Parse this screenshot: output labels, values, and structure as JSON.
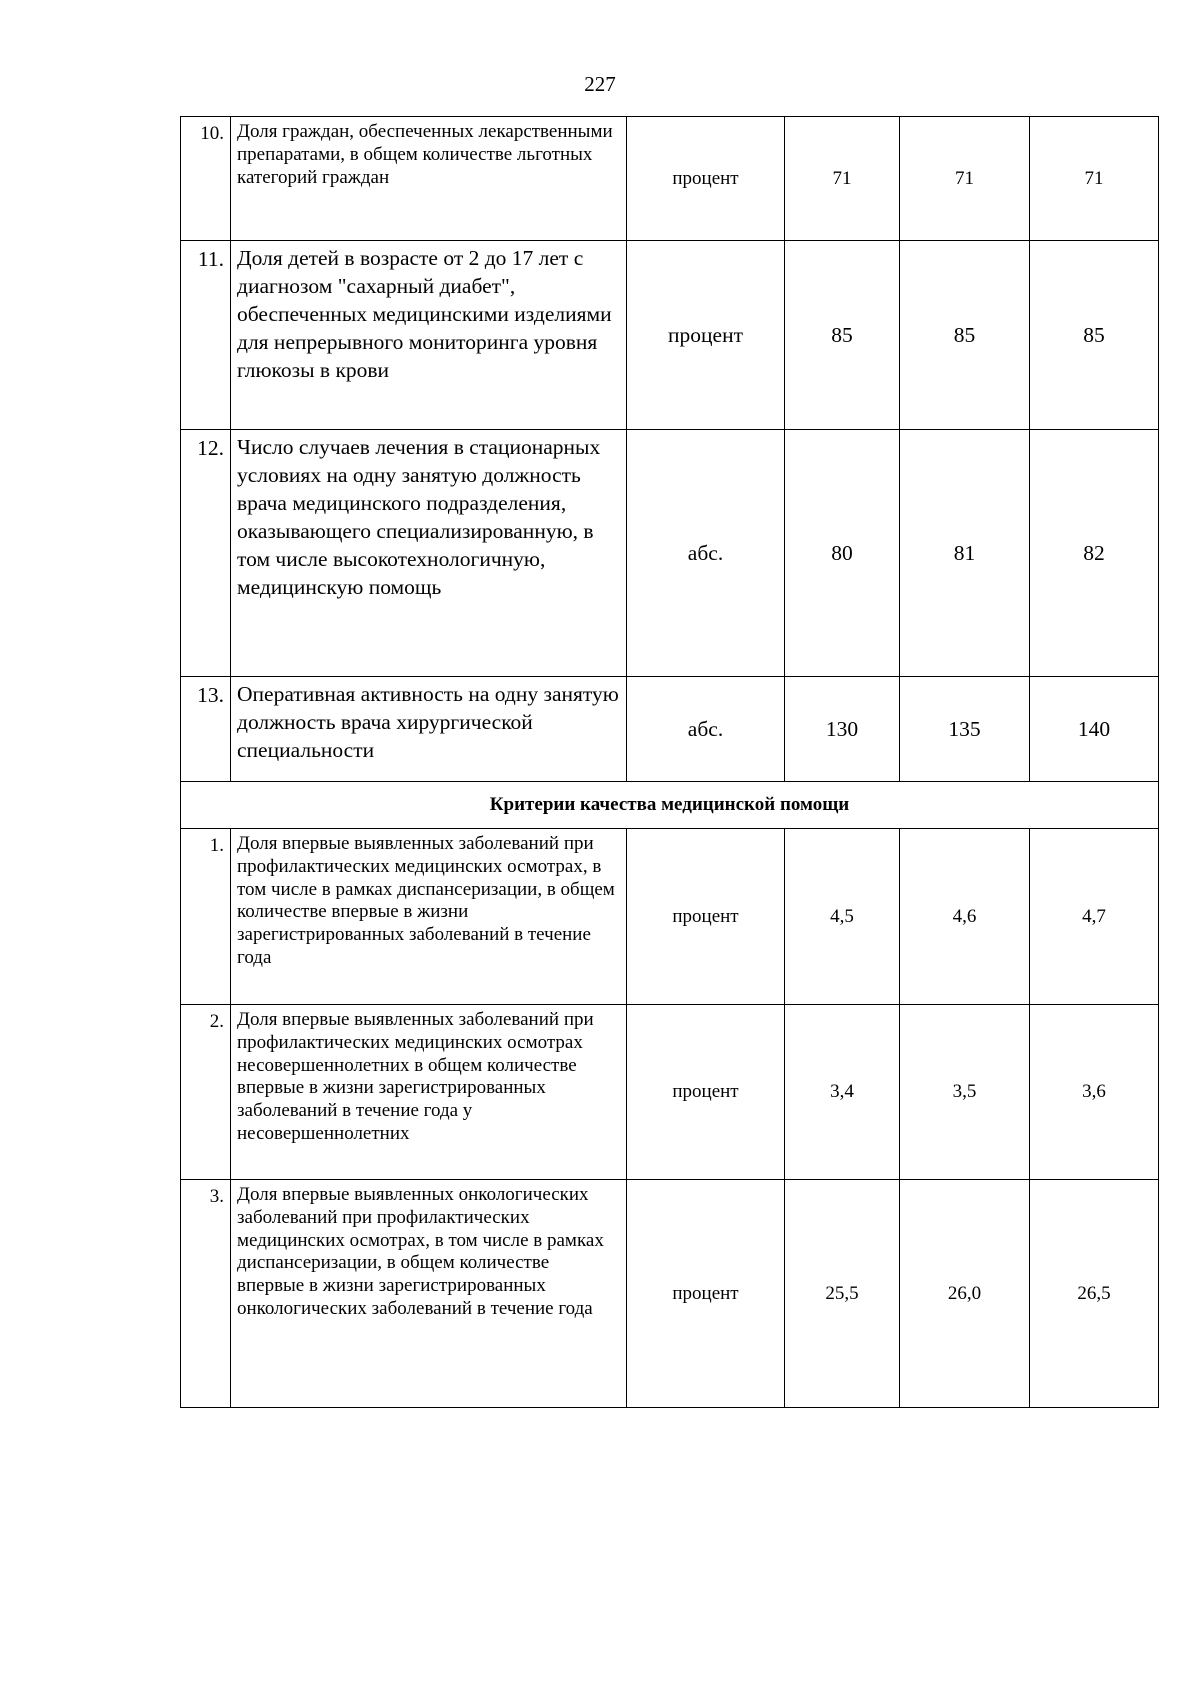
{
  "page_number": "227",
  "rows_a": [
    {
      "num": "10.",
      "desc": "Доля граждан, обеспеченных лекарственными препаратами, в общем количестве льготных категорий граждан",
      "unit": "процент",
      "v1": "71",
      "v2": "71",
      "v3": "71"
    },
    {
      "num": "11.",
      "desc": "Доля детей в возрасте от 2 до 17 лет с диагнозом \"сахарный диабет\", обеспеченных медицинскими изделиями для непрерывного мониторинга уровня глюкозы в крови",
      "unit": "процент",
      "v1": "85",
      "v2": "85",
      "v3": "85"
    },
    {
      "num": "12.",
      "desc": "Число случаев лечения в стационарных условиях на одну занятую должность врача медицинского подразделения, оказывающего специализированную, в том числе высокотехнологичную, медицинскую помощь",
      "unit": "абс.",
      "v1": "80",
      "v2": "81",
      "v3": "82"
    },
    {
      "num": "13.",
      "desc": "Оперативная активность на одну занятую должность врача хирургической специальности",
      "unit": "абс.",
      "v1": "130",
      "v2": "135",
      "v3": "140"
    }
  ],
  "section_heading": "Критерии качества медицинской помощи",
  "rows_b": [
    {
      "num": "1.",
      "desc": "Доля впервые выявленных заболеваний при профилактических медицинских осмотрах, в том числе в рамках диспансеризации, в общем количестве впервые в жизни зарегистрированных заболеваний в течение года",
      "unit": "процент",
      "v1": "4,5",
      "v2": "4,6",
      "v3": "4,7"
    },
    {
      "num": "2.",
      "desc": "Доля впервые выявленных заболеваний при профилактических медицинских осмотрах несовершеннолетних в общем количестве впервые в жизни зарегистрированных заболеваний в течение года у несовершеннолетних",
      "unit": "процент",
      "v1": "3,4",
      "v2": "3,5",
      "v3": "3,6"
    },
    {
      "num": "3.",
      "desc": "Доля впервые выявленных онкологических заболеваний при профилактических медицинских осмотрах, в том числе в рамках диспансеризации, в общем количестве впервые в жизни зарегистрированных онкологических заболеваний в течение года",
      "unit": "процент",
      "v1": "25,5",
      "v2": "26,0",
      "v3": "26,5"
    }
  ]
}
